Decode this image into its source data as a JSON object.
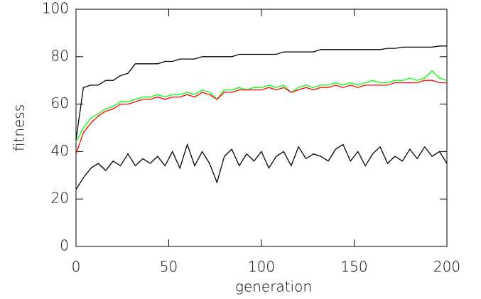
{
  "chart_data": {
    "type": "line",
    "x_label": "generation",
    "y_label": "fitness",
    "x": [
      0,
      4,
      8,
      12,
      16,
      20,
      24,
      28,
      32,
      36,
      40,
      44,
      48,
      52,
      56,
      60,
      64,
      68,
      72,
      76,
      80,
      84,
      88,
      92,
      96,
      100,
      104,
      108,
      112,
      116,
      120,
      124,
      128,
      132,
      136,
      140,
      144,
      148,
      152,
      156,
      160,
      164,
      168,
      172,
      176,
      180,
      184,
      188,
      192,
      196,
      200
    ],
    "series": [
      {
        "color": "#000000",
        "values": [
          45,
          67,
          68,
          68,
          70,
          70,
          72,
          73,
          77,
          77,
          77,
          77,
          78,
          78,
          79,
          79,
          79,
          80,
          80,
          80,
          80,
          80,
          81,
          81,
          81,
          81,
          81,
          81,
          82,
          82,
          82,
          82,
          82,
          83,
          83,
          83,
          83,
          83,
          83,
          83,
          83,
          83,
          83.5,
          83.5,
          84,
          84,
          84,
          84,
          84,
          84.5,
          84.5
        ]
      },
      {
        "color": "#00ff00",
        "values": [
          44,
          50,
          54,
          56,
          58,
          59,
          61,
          61,
          62,
          63,
          63,
          64,
          63,
          64,
          64,
          65,
          64,
          66,
          65,
          62,
          66,
          66,
          67,
          66,
          67,
          67,
          68,
          67,
          68,
          65,
          67,
          68,
          67,
          68,
          68,
          69,
          68,
          69,
          68,
          69,
          70,
          69,
          69,
          70,
          70,
          71,
          70,
          71,
          74,
          71,
          70
        ]
      },
      {
        "color": "#ff0000",
        "values": [
          39,
          48,
          52,
          55,
          57,
          58,
          60,
          60,
          61,
          62,
          62,
          63,
          62,
          63,
          63,
          64,
          63,
          65,
          64,
          62,
          65,
          65,
          66,
          66,
          66,
          66,
          67,
          66,
          67,
          65,
          66,
          67,
          66,
          67,
          67,
          68,
          67,
          68,
          67,
          68,
          68,
          68,
          68,
          69,
          69,
          69,
          69,
          70,
          70,
          69,
          69
        ]
      },
      {
        "color": "#000000",
        "values": [
          24,
          29,
          33,
          35,
          32,
          36,
          34,
          39,
          34,
          37,
          35,
          38,
          34,
          40,
          33,
          43,
          34,
          40,
          35,
          27,
          38,
          41,
          34,
          39,
          36,
          40,
          33,
          38,
          40,
          34,
          42,
          37,
          39,
          38,
          36,
          41,
          43,
          36,
          40,
          34,
          39,
          42,
          35,
          38,
          36,
          41,
          37,
          42,
          38,
          40,
          35
        ]
      }
    ],
    "xlim": [
      0,
      200
    ],
    "ylim": [
      0,
      100
    ],
    "xticks": [
      0,
      50,
      100,
      150,
      200
    ],
    "yticks": [
      0,
      20,
      40,
      60,
      80,
      100
    ]
  }
}
